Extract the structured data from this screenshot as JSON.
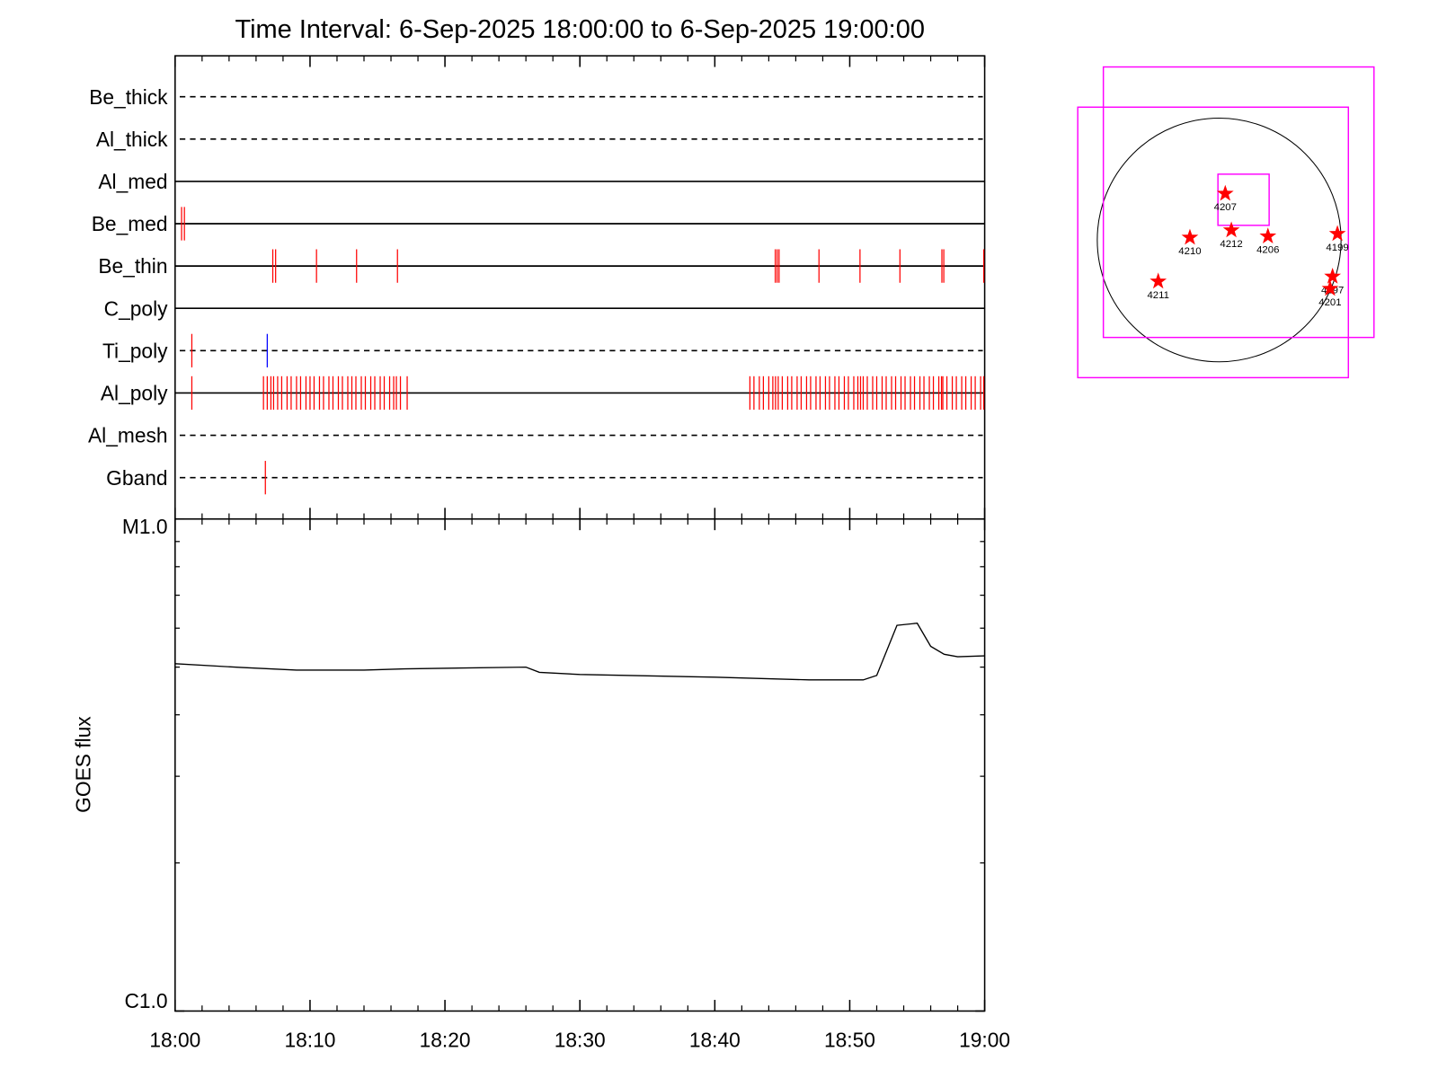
{
  "chart_data": [
    {
      "type": "event-lanes",
      "title": "Time Interval:  6-Sep-2025 18:00:00 to  6-Sep-2025 19:00:00",
      "xlim": [
        0,
        60
      ],
      "rows": [
        {
          "name": "Be_thick",
          "line": "dashed",
          "events": []
        },
        {
          "name": "Al_thick",
          "line": "dashed",
          "events": []
        },
        {
          "name": "Al_med",
          "line": "solid",
          "events": []
        },
        {
          "name": "Be_med",
          "line": "solid",
          "events": [
            {
              "color": "#ff0000",
              "times": [
                0.48,
                0.69
              ]
            }
          ]
        },
        {
          "name": "Be_thin",
          "line": "solid",
          "events": [
            {
              "color": "#ff0000",
              "times": [
                7.24,
                7.45,
                10.48,
                13.45,
                16.48,
                44.48,
                44.62,
                44.76,
                47.72,
                50.76,
                53.72,
                56.83,
                56.97,
                59.93
              ]
            }
          ]
        },
        {
          "name": "C_poly",
          "line": "solid",
          "events": []
        },
        {
          "name": "Ti_poly",
          "line": "dashed",
          "events": [
            {
              "color": "#ff0000",
              "times": [
                1.24
              ]
            },
            {
              "color": "#0000ff",
              "times": [
                6.83
              ]
            }
          ]
        },
        {
          "name": "Al_poly",
          "line": "solid",
          "events": [
            {
              "color": "#ff0000",
              "times": [
                1.24,
                6.55,
                6.83,
                7.1,
                7.3,
                7.6,
                7.9,
                8.3,
                8.6,
                9.0,
                9.3,
                9.7,
                10.0,
                10.3,
                10.7,
                11.0,
                11.4,
                11.7,
                12.1,
                12.4,
                12.8,
                13.1,
                13.4,
                13.8,
                14.1,
                14.5,
                14.8,
                15.2,
                15.5,
                15.9,
                16.2,
                16.4,
                16.7,
                17.2,
                42.6,
                42.9,
                43.3,
                43.6,
                44.0,
                44.3,
                44.5,
                44.7,
                45.0,
                45.4,
                45.7,
                46.1,
                46.4,
                46.8,
                47.1,
                47.5,
                47.8,
                48.2,
                48.5,
                48.9,
                49.2,
                49.6,
                49.9,
                50.3,
                50.6,
                50.8,
                51.0,
                51.3,
                51.7,
                52.0,
                52.4,
                52.7,
                53.1,
                53.4,
                53.8,
                54.1,
                54.5,
                54.8,
                55.2,
                55.5,
                55.9,
                56.2,
                56.6,
                56.8,
                56.9,
                57.2,
                57.6,
                57.9,
                58.3,
                58.6,
                59.0,
                59.3,
                59.7,
                59.93
              ]
            }
          ]
        },
        {
          "name": "Al_mesh",
          "line": "dashed",
          "events": []
        },
        {
          "name": "Gband",
          "line": "dashed",
          "events": [
            {
              "color": "#ff0000",
              "times": [
                6.69
              ]
            }
          ]
        }
      ]
    },
    {
      "type": "line",
      "y_label": "GOES flux",
      "log_y": true,
      "x": [
        0,
        5,
        9,
        14,
        17,
        26,
        27,
        30,
        40,
        47,
        51,
        52,
        53.5,
        55,
        56,
        57,
        58,
        60
      ],
      "series": [
        {
          "color": "#000000",
          "values": [
            5.08e-06,
            4.99e-06,
            4.93e-06,
            4.93e-06,
            4.96e-06,
            5e-06,
            4.88e-06,
            4.83e-06,
            4.77e-06,
            4.71e-06,
            4.71e-06,
            4.81e-06,
            6.08e-06,
            6.14e-06,
            5.51e-06,
            5.31e-06,
            5.25e-06,
            5.27e-06
          ]
        }
      ],
      "xlim": [
        0,
        60
      ],
      "xticks": [
        {
          "value": 0,
          "label": "18:00"
        },
        {
          "value": 10,
          "label": "18:10"
        },
        {
          "value": 20,
          "label": "18:20"
        },
        {
          "value": 30,
          "label": "18:30"
        },
        {
          "value": 40,
          "label": "18:40"
        },
        {
          "value": 50,
          "label": "18:50"
        },
        {
          "value": 60,
          "label": "19:00"
        }
      ],
      "ylim": [
        1e-06,
        1e-05
      ],
      "yticks": [
        {
          "value": 1e-06,
          "label": "C1.0"
        },
        {
          "value": 1e-05,
          "label": "M1.0"
        }
      ]
    },
    {
      "type": "disk-map",
      "disk_color": "#000000",
      "box_color": "#ff00ff",
      "star_color": "#ff0000",
      "fov_boxes": [
        {
          "cx": 0.16,
          "cy": 0.31,
          "half": 1.11
        },
        {
          "cx": -0.05,
          "cy": -0.02,
          "half": 1.11
        },
        {
          "cx": 0.2,
          "cy": 0.33,
          "half": 0.21
        }
      ],
      "regions": [
        {
          "label": "4207",
          "x": 0.05,
          "y": 0.38
        },
        {
          "label": "4210",
          "x": -0.24,
          "y": 0.02
        },
        {
          "label": "4212",
          "x": 0.1,
          "y": 0.08
        },
        {
          "label": "4206",
          "x": 0.4,
          "y": 0.03
        },
        {
          "label": "4199",
          "x": 0.97,
          "y": 0.05
        },
        {
          "label": "4211",
          "x": -0.5,
          "y": -0.34
        },
        {
          "label": "4197",
          "x": 0.93,
          "y": -0.3
        },
        {
          "label": "4201",
          "x": 0.91,
          "y": -0.4
        }
      ]
    }
  ]
}
